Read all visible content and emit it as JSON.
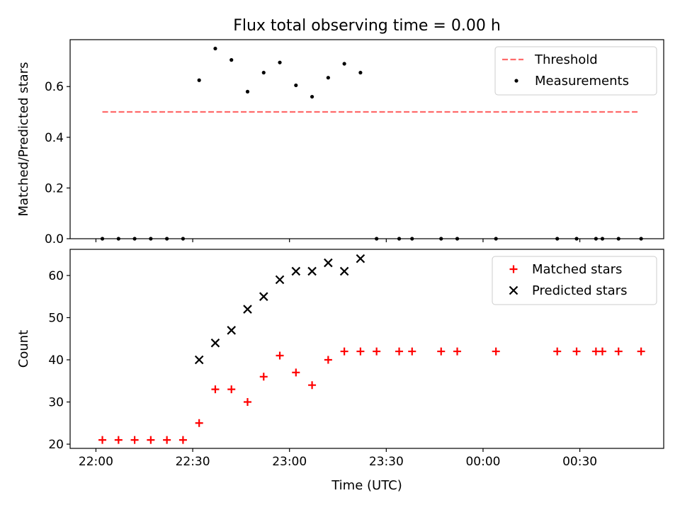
{
  "figure": {
    "title": "Flux total observing time = 0.00 h"
  },
  "xaxis": {
    "label": "Time (UTC)",
    "ticks": [
      {
        "t": 0,
        "label": "22:00"
      },
      {
        "t": 30,
        "label": "22:30"
      },
      {
        "t": 60,
        "label": "23:00"
      },
      {
        "t": 90,
        "label": "23:30"
      },
      {
        "t": 120,
        "label": "00:00"
      },
      {
        "t": 150,
        "label": "00:30"
      }
    ]
  },
  "chart_data": [
    {
      "type": "scatter",
      "ylabel": "Matched/Predicted stars",
      "xlim": [
        -8,
        176
      ],
      "ylim": [
        0,
        0.785
      ],
      "yticks": [
        {
          "v": 0.0,
          "label": "0.0"
        },
        {
          "v": 0.2,
          "label": "0.2"
        },
        {
          "v": 0.4,
          "label": "0.4"
        },
        {
          "v": 0.6,
          "label": "0.6"
        }
      ],
      "legend_position": "top-right",
      "threshold": {
        "name": "Threshold",
        "value": 0.5,
        "x_from": 2,
        "x_to": 168,
        "color": "#ff6b6b"
      },
      "series": [
        {
          "name": "Measurements",
          "marker": "dot",
          "color": "#000000",
          "points": [
            [
              2,
              0
            ],
            [
              7,
              0
            ],
            [
              12,
              0
            ],
            [
              17,
              0
            ],
            [
              22,
              0
            ],
            [
              27,
              0
            ],
            [
              32,
              0.625
            ],
            [
              37,
              0.75
            ],
            [
              42,
              0.705
            ],
            [
              47,
              0.58
            ],
            [
              52,
              0.655
            ],
            [
              57,
              0.695
            ],
            [
              62,
              0.605
            ],
            [
              67,
              0.56
            ],
            [
              72,
              0.635
            ],
            [
              77,
              0.69
            ],
            [
              82,
              0.655
            ],
            [
              87,
              0
            ],
            [
              94,
              0
            ],
            [
              98,
              0
            ],
            [
              107,
              0
            ],
            [
              112,
              0
            ],
            [
              124,
              0
            ],
            [
              143,
              0
            ],
            [
              149,
              0
            ],
            [
              155,
              0
            ],
            [
              157,
              0
            ],
            [
              162,
              0
            ],
            [
              169,
              0
            ]
          ]
        }
      ]
    },
    {
      "type": "scatter",
      "ylabel": "Count",
      "xlim": [
        -8,
        176
      ],
      "ylim": [
        19,
        66.2
      ],
      "yticks": [
        {
          "v": 20,
          "label": "20"
        },
        {
          "v": 30,
          "label": "30"
        },
        {
          "v": 40,
          "label": "40"
        },
        {
          "v": 50,
          "label": "50"
        },
        {
          "v": 60,
          "label": "60"
        }
      ],
      "legend_position": "top-right",
      "series": [
        {
          "name": "Matched stars",
          "marker": "plus",
          "color": "#ff0000",
          "points": [
            [
              2,
              21
            ],
            [
              7,
              21
            ],
            [
              12,
              21
            ],
            [
              17,
              21
            ],
            [
              22,
              21
            ],
            [
              27,
              21
            ],
            [
              32,
              25
            ],
            [
              37,
              33
            ],
            [
              42,
              33
            ],
            [
              47,
              30
            ],
            [
              52,
              36
            ],
            [
              57,
              41
            ],
            [
              62,
              37
            ],
            [
              67,
              34
            ],
            [
              72,
              40
            ],
            [
              77,
              42
            ],
            [
              82,
              42
            ],
            [
              87,
              42
            ],
            [
              94,
              42
            ],
            [
              98,
              42
            ],
            [
              107,
              42
            ],
            [
              112,
              42
            ],
            [
              124,
              42
            ],
            [
              143,
              42
            ],
            [
              149,
              42
            ],
            [
              155,
              42
            ],
            [
              157,
              42
            ],
            [
              162,
              42
            ],
            [
              169,
              42
            ]
          ]
        },
        {
          "name": "Predicted stars",
          "marker": "x",
          "color": "#000000",
          "points": [
            [
              32,
              40
            ],
            [
              37,
              44
            ],
            [
              42,
              47
            ],
            [
              47,
              52
            ],
            [
              52,
              55
            ],
            [
              57,
              59
            ],
            [
              62,
              61
            ],
            [
              67,
              61
            ],
            [
              72,
              63
            ],
            [
              77,
              61
            ],
            [
              82,
              64
            ]
          ]
        }
      ]
    }
  ]
}
